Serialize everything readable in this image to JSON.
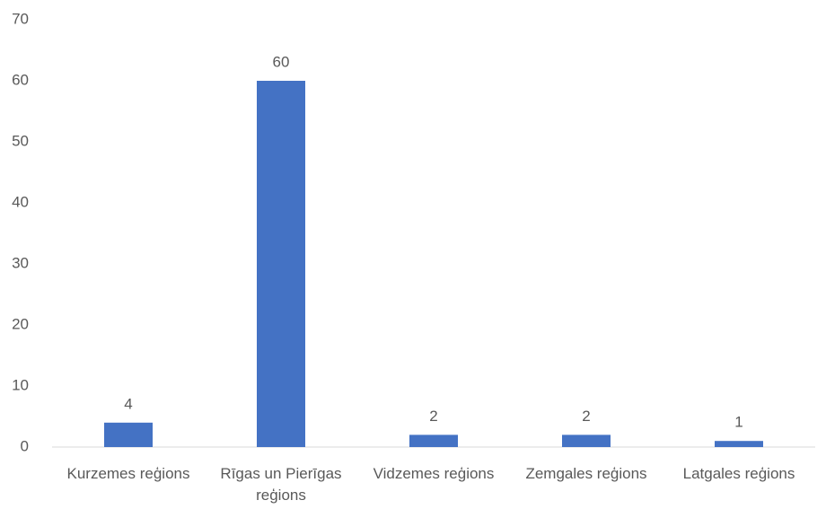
{
  "chart_data": {
    "type": "bar",
    "categories": [
      "Kurzemes reģions",
      "Rīgas un Pierīgas reģions",
      "Vidzemes reģions",
      "Zemgales reģions",
      "Latgales reģions"
    ],
    "values": [
      4,
      60,
      2,
      2,
      1
    ],
    "color": "#4472c4",
    "ylim": [
      0,
      70
    ],
    "yticks": [
      0,
      10,
      20,
      30,
      40,
      50,
      60,
      70
    ],
    "grid": false,
    "data_labels": true
  }
}
